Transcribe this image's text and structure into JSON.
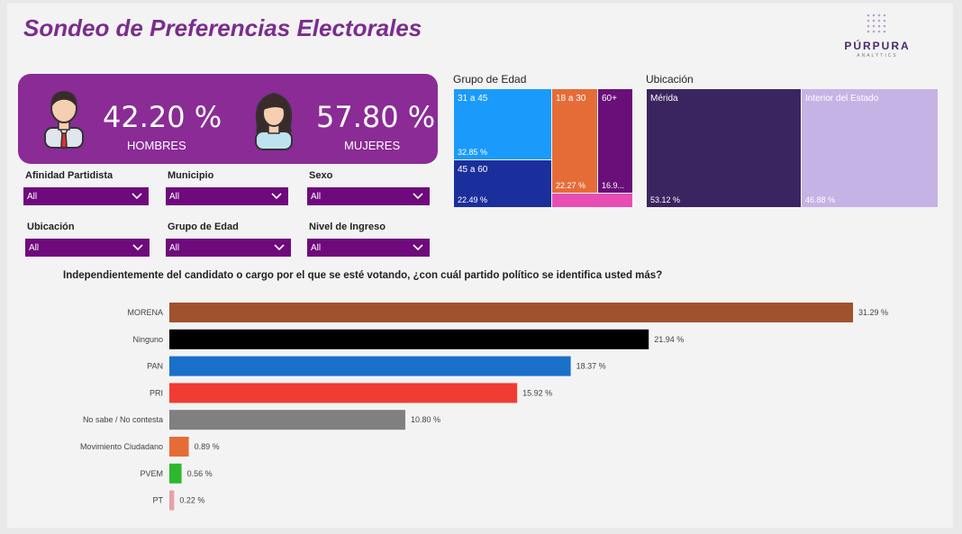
{
  "title": "Sondeo de Preferencias Electorales",
  "logo": {
    "name": "PÚRPURA",
    "sub": "ANALYTICS"
  },
  "kpi": {
    "men": {
      "value": "42.20 %",
      "label": "HOMBRES"
    },
    "women": {
      "value": "57.80 %",
      "label": "MUJERES"
    }
  },
  "filters": [
    {
      "label": "Afinidad Partidista",
      "value": "All"
    },
    {
      "label": "Municipio",
      "value": "All"
    },
    {
      "label": "Sexo",
      "value": "All"
    },
    {
      "label": "Ubicación",
      "value": "All"
    },
    {
      "label": "Grupo de Edad",
      "value": "All"
    },
    {
      "label": "Nivel de Ingreso",
      "value": "All"
    }
  ],
  "age_group": {
    "title": "Grupo de Edad",
    "tiles": [
      {
        "name": "31 a 45",
        "pct": "32.85 %",
        "color": "#1a9bfc"
      },
      {
        "name": "45 a 60",
        "pct": "22.49 %",
        "color": "#1b2f9c"
      },
      {
        "name": "18 a 30",
        "pct": "22.27 %",
        "color": "#e66c37"
      },
      {
        "name": "60+",
        "pct": "16.9...",
        "color": "#6a0f79"
      },
      {
        "name": "",
        "pct": "",
        "color": "#e84db4"
      }
    ]
  },
  "location": {
    "title": "Ubicación",
    "tiles": [
      {
        "name": "Mérida",
        "pct": "53.12 %",
        "color": "#3b2560"
      },
      {
        "name": "Interior del Estado",
        "pct": "46.88 %",
        "color": "#c6b3e6"
      }
    ]
  },
  "question": "Independientemente del candidato o cargo por el que se esté votando, ¿con cuál partido político se identifica usted más?",
  "chart_data": {
    "type": "bar",
    "orientation": "horizontal",
    "title": "Independientemente del candidato o cargo por el que se esté votando, ¿con cuál partido político se identifica usted más?",
    "categories": [
      "MORENA",
      "Ninguno",
      "PAN",
      "PRI",
      "No sabe / No contesta",
      "Movimiento Ciudadano",
      "PVEM",
      "PT"
    ],
    "values": [
      31.29,
      21.94,
      18.37,
      15.92,
      10.8,
      0.89,
      0.56,
      0.22
    ],
    "labels": [
      "31.29 %",
      "21.94 %",
      "18.37 %",
      "15.92 %",
      "10.80 %",
      "0.89 %",
      "0.56 %",
      "0.22 %"
    ],
    "colors": [
      "#a0522d",
      "#000000",
      "#1a6fc9",
      "#f03c33",
      "#808080",
      "#e66c37",
      "#2db82d",
      "#e8a0a8"
    ],
    "xlim": [
      0,
      31.29
    ]
  }
}
